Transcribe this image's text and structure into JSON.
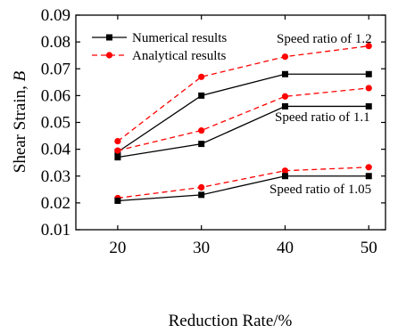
{
  "chart_data": {
    "type": "line",
    "xlabel": "Reduction Rate/%",
    "ylabel_text": "Shear Strain, ",
    "ylabel_var": "B",
    "x": [
      20,
      30,
      40,
      50
    ],
    "xlim": [
      15,
      52
    ],
    "ylim": [
      0.01,
      0.09
    ],
    "yticks": [
      "0.01",
      "0.02",
      "0.03",
      "0.04",
      "0.05",
      "0.06",
      "0.07",
      "0.08",
      "0.09"
    ],
    "xticks": [
      "20",
      "30",
      "40",
      "50"
    ],
    "grid": false,
    "legend": {
      "placement": "top-left",
      "entries": [
        "Numerical results",
        "Analytical results"
      ]
    },
    "styles": {
      "numerical": {
        "color": "#000000",
        "dash": "solid",
        "marker": "square"
      },
      "analytical": {
        "color": "#ff0000",
        "dash": "dashed",
        "marker": "circle"
      }
    },
    "series": [
      {
        "group": "Speed ratio of 1.2",
        "kind": "analytical",
        "values": [
          0.043,
          0.067,
          0.0745,
          0.0785
        ]
      },
      {
        "group": "Speed ratio of 1.2",
        "kind": "numerical",
        "values": [
          0.039,
          0.06,
          0.068,
          0.068
        ]
      },
      {
        "group": "Speed ratio of 1.1",
        "kind": "analytical",
        "values": [
          0.0395,
          0.047,
          0.0597,
          0.0628
        ]
      },
      {
        "group": "Speed ratio of 1.1",
        "kind": "numerical",
        "values": [
          0.037,
          0.042,
          0.056,
          0.056
        ]
      },
      {
        "group": "Speed ratio of 1.05",
        "kind": "analytical",
        "values": [
          0.0218,
          0.0258,
          0.032,
          0.0333
        ]
      },
      {
        "group": "Speed ratio of 1.05",
        "kind": "numerical",
        "values": [
          0.0208,
          0.023,
          0.03,
          0.03
        ]
      }
    ],
    "annotations": [
      "Speed ratio of 1.2",
      "Speed ratio of 1.1",
      "Speed ratio of 1.05"
    ]
  }
}
